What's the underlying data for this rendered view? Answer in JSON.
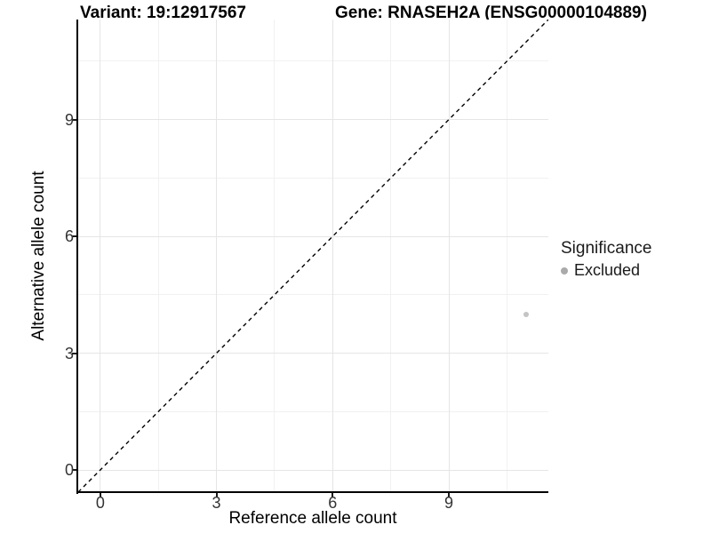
{
  "chart_data": {
    "type": "scatter",
    "titles": {
      "left": "Variant: 19:12917567",
      "right": "Gene: RNASEH2A (ENSG00000104889)"
    },
    "xlabel": "Reference allele count",
    "ylabel": "Alternative allele count",
    "xlim": [
      -0.57,
      11.57
    ],
    "ylim": [
      -0.57,
      11.57
    ],
    "x_ticks": [
      0,
      3,
      6,
      9
    ],
    "y_ticks": [
      0,
      3,
      6,
      9
    ],
    "x_minor_ticks": [
      1.5,
      4.5,
      7.5,
      10.5
    ],
    "y_minor_ticks": [
      1.5,
      4.5,
      7.5,
      10.5
    ],
    "grid": "major and minor, light grey on white",
    "reference_line": {
      "kind": "identity y = x",
      "style": "dashed",
      "color": "#000000"
    },
    "series": [
      {
        "name": "Excluded",
        "points": [
          {
            "x": 11,
            "y": 4
          }
        ]
      }
    ],
    "legend": {
      "title": "Significance",
      "position": "right",
      "entries": [
        {
          "label": "Excluded",
          "marker": "circle",
          "color": "#aaaaaa"
        }
      ]
    }
  },
  "colors": {
    "background": "#ffffff",
    "grid_major": "#e5e5e5",
    "grid_minor": "#f1f1f1",
    "axis_line": "#000000",
    "point": "#c4c4c4",
    "legend_marker": "#aaaaaa",
    "dashed_line": "#000000"
  }
}
